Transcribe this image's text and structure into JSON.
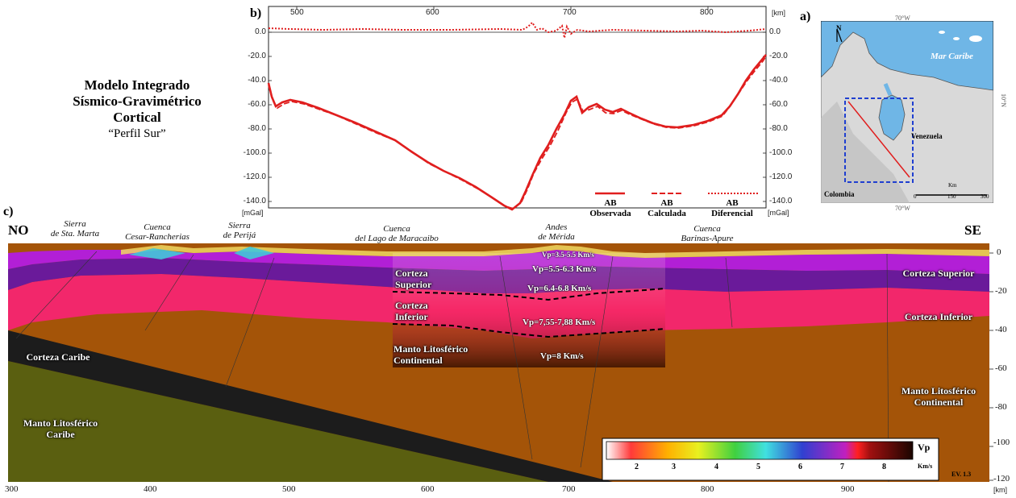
{
  "title": {
    "line1": "Modelo Integrado",
    "line2": "Sísmico-Gravimétrico",
    "line3": "Cortical",
    "line4": "“Perfil Sur”"
  },
  "panel_labels": {
    "a": "a)",
    "b": "b)",
    "c": "c)"
  },
  "gravity": {
    "top_axis_ticks": [
      "500",
      "600",
      "700",
      "800"
    ],
    "top_axis_unit": "[km]",
    "left_ticks": [
      "0.0",
      "-20.0",
      "-40.0",
      "-60.0",
      "-80.0",
      "-100.0",
      "-120.0",
      "-140.0"
    ],
    "right_ticks": [
      "0.0",
      "-20.0",
      "-40.0",
      "-60.0",
      "-80.0",
      "-100.0",
      "-120.0",
      "-140.0"
    ],
    "unit_left": "[mGal]",
    "unit_right": "[mGal]",
    "legend": [
      {
        "line1": "AB",
        "line2": "Observada",
        "style": "solid"
      },
      {
        "line1": "AB",
        "line2": "Calculada",
        "style": "dashed"
      },
      {
        "line1": "AB",
        "line2": "Diferencial",
        "style": "dotted"
      }
    ],
    "color": "#e01e1e"
  },
  "map": {
    "top_lon": "70°W",
    "bottom_lon": "70°W",
    "lat": "10°N",
    "north": "N",
    "sea": "Mar Caribe",
    "country1": "Venezuela",
    "country2": "Colombia",
    "scale_unit": "Km",
    "scale_ticks": [
      "0",
      "150",
      "300"
    ]
  },
  "section": {
    "corner_left": "NO",
    "corner_right": "SE",
    "places": [
      {
        "l1": "Sierra",
        "l2": "de Sta. Marta"
      },
      {
        "l1": "Cuenca",
        "l2": "Cesar-Rancherias"
      },
      {
        "l1": "Sierra",
        "l2": "de Perijá"
      },
      {
        "l1": "Cuenca",
        "l2": "del Lago de Maracaibo"
      },
      {
        "l1": "Andes",
        "l2": "de Mérida"
      },
      {
        "l1": "Cuenca",
        "l2": "Barinas-Apure"
      }
    ],
    "inset_labels": {
      "sup_l1": "Corteza",
      "sup_l2": "Superior",
      "inf_l1": "Corteza",
      "inf_l2": "Inferior",
      "manto_l1": "Manto Litosférico",
      "manto_l2": "Continental"
    },
    "vp_labels": [
      "Vp=3.5-5.5 Km/s",
      "Vp=5.5-6.3 Km/s",
      "Vp=6.4-6.8 Km/s",
      "Vp=7,55-7,88 Km/s",
      "Vp=8 Km/s"
    ],
    "right_labels": {
      "sup": "Corteza Superior",
      "inf": "Corteza Inferior",
      "manto_l1": "Manto Litosférico",
      "manto_l2": "Continental"
    },
    "left_labels": {
      "caribe": "Corteza Caribe",
      "manto_l1": "Manto Litosférico",
      "manto_l2": "Caribe"
    },
    "x_ticks": [
      "300",
      "400",
      "500",
      "600",
      "700",
      "800",
      "900"
    ],
    "x_unit": "[km]",
    "depth_ticks": [
      "0",
      "-20",
      "-40",
      "-60",
      "-80",
      "-100",
      "-120"
    ],
    "colorbar": {
      "title": "Vp",
      "unit": "Km/s",
      "ticks": [
        "2",
        "3",
        "4",
        "5",
        "6",
        "7",
        "8"
      ]
    },
    "version": "EV. 1.3",
    "colors": {
      "upper_crust": "#b21fd6",
      "upper_crust_dark": "#6a1a9a",
      "lower_crust": "#f2276b",
      "mantle": "#a45408",
      "caribbean_crust": "#1c1c1c",
      "caribbean_mantle": "#5a5f10"
    }
  }
}
